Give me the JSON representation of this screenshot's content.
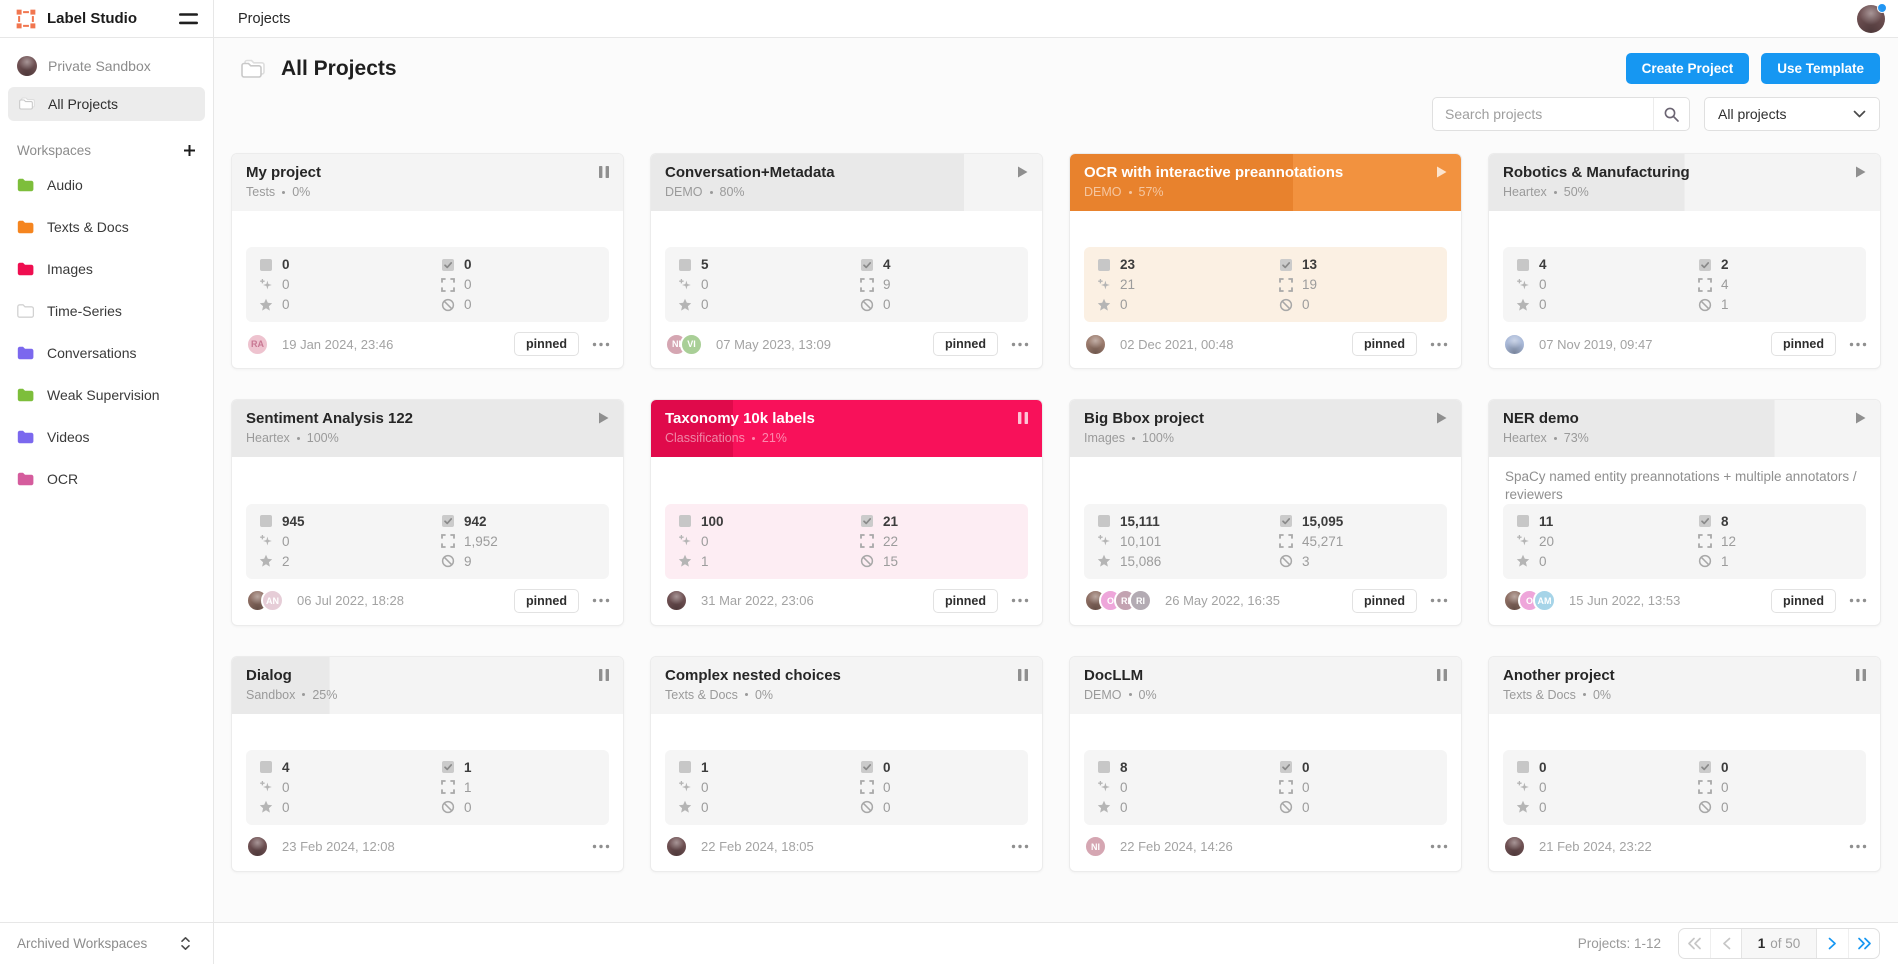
{
  "topbar": {
    "brand": "Label Studio",
    "page_title": "Projects"
  },
  "icons": {
    "logo": "label-studio-logo",
    "menu": "hamburger",
    "search": "magnifier",
    "filter_caret": "chevron-down",
    "add_workspace": "plus",
    "archived_sort": "up-down-chevrons",
    "all_projects": "folder-stack",
    "header_title": "folder-stack",
    "workspace_item": "folder",
    "card_menu": "ellipsis",
    "page_first": "double-chevron-left",
    "page_prev": "chevron-left",
    "page_next": "chevron-right",
    "page_last": "double-chevron-right"
  },
  "colors": {
    "accent_blue": "#1697f2",
    "logo_orange": "#f1764f",
    "pager_active_blue": "#2f9ff3",
    "user_badge_blue": "#2196f3",
    "card_themes": {
      "gray": {
        "fill": "#e9e9e9",
        "base": "#f4f4f4",
        "title": "#262626",
        "subtitle": "#9a9a9a",
        "stats_bg": "#f5f5f5",
        "state": "#8f8f8f"
      },
      "orange": {
        "fill": "#e8822d",
        "base": "#f2923f",
        "title": "#ffffff",
        "subtitle": "rgba(255,255,255,0.55)",
        "stats_bg": "#fbf0e3",
        "state": "rgba(255,255,255,0.75)"
      },
      "red": {
        "fill": "#e00a4b",
        "base": "#f8115a",
        "title": "#ffffff",
        "subtitle": "rgba(255,255,255,0.5)",
        "stats_bg": "#fdedf3",
        "state": "rgba(255,255,255,0.75)"
      }
    }
  },
  "sidebar": {
    "private_sandbox_label": "Private Sandbox",
    "private_avatar_color": "#6e5052",
    "all_projects_label": "All Projects",
    "workspaces_label": "Workspaces",
    "archived_label": "Archived Workspaces",
    "workspaces": [
      {
        "label": "Audio",
        "color": "#7dbe3b",
        "outline": false
      },
      {
        "label": "Texts & Docs",
        "color": "#f5851f",
        "outline": false
      },
      {
        "label": "Images",
        "color": "#ef0e50",
        "outline": false
      },
      {
        "label": "Time-Series",
        "color": "#ffffff",
        "outline": true
      },
      {
        "label": "Conversations",
        "color": "#7b68ee",
        "outline": false
      },
      {
        "label": "Weak Supervision",
        "color": "#7dbe3b",
        "outline": false
      },
      {
        "label": "Videos",
        "color": "#7b68ee",
        "outline": false
      },
      {
        "label": "OCR",
        "color": "#d55c9d",
        "outline": false
      }
    ]
  },
  "header": {
    "title": "All Projects",
    "create_button": "Create Project",
    "use_template_button": "Use Template",
    "search_placeholder": "Search projects",
    "search_value": "",
    "filter_value": "All projects"
  },
  "labels": {
    "pinned": "pinned"
  },
  "stat_rows": [
    {
      "key": "tasks",
      "icon": "task-square"
    },
    {
      "key": "completed",
      "icon": "check-square"
    },
    {
      "key": "predictions",
      "icon": "sparkles"
    },
    {
      "key": "annotations",
      "icon": "bbox-corners"
    },
    {
      "key": "ground_truth",
      "icon": "star"
    },
    {
      "key": "skipped",
      "icon": "ban"
    }
  ],
  "user": {
    "avatar_color": "#6e5052"
  },
  "cards": [
    {
      "title": "My project",
      "workspace": "Tests",
      "percent": "0%",
      "progress": 0,
      "theme": "gray",
      "state": "pause",
      "description": "",
      "stats": {
        "tasks": "0",
        "completed": "0",
        "predictions": "0",
        "annotations": "0",
        "ground_truth": "0",
        "skipped": "0"
      },
      "avatars": [
        {
          "text": "RA",
          "bg": "#eec3cf",
          "fg": "#c87893",
          "photo": false
        }
      ],
      "date": "19 Jan 2024, 23:46",
      "pinned": true
    },
    {
      "title": "Conversation+Metadata",
      "workspace": "DEMO",
      "percent": "80%",
      "progress": 80,
      "theme": "gray",
      "state": "play",
      "description": "",
      "stats": {
        "tasks": "5",
        "completed": "4",
        "predictions": "0",
        "annotations": "9",
        "ground_truth": "0",
        "skipped": "0"
      },
      "avatars": [
        {
          "text": "NI",
          "bg": "#d5a6b2",
          "fg": "#ffffff",
          "photo": false
        },
        {
          "text": "VI",
          "bg": "#a9cf97",
          "fg": "#ffffff",
          "photo": false
        }
      ],
      "date": "07 May 2023, 13:09",
      "pinned": true
    },
    {
      "title": "OCR with interactive preannotations",
      "workspace": "DEMO",
      "percent": "57%",
      "progress": 57,
      "theme": "orange",
      "state": "play",
      "description": "",
      "stats": {
        "tasks": "23",
        "completed": "13",
        "predictions": "21",
        "annotations": "19",
        "ground_truth": "0",
        "skipped": "0"
      },
      "avatars": [
        {
          "text": "",
          "bg": "#9b7b6d",
          "fg": "#ffffff",
          "photo": true
        }
      ],
      "date": "02 Dec 2021, 00:48",
      "pinned": true
    },
    {
      "title": "Robotics & Manufacturing",
      "workspace": "Heartex",
      "percent": "50%",
      "progress": 50,
      "theme": "gray",
      "state": "play",
      "description": "",
      "stats": {
        "tasks": "4",
        "completed": "2",
        "predictions": "0",
        "annotations": "4",
        "ground_truth": "0",
        "skipped": "1"
      },
      "avatars": [
        {
          "text": "",
          "bg": "#a9b9d8",
          "fg": "#ffffff",
          "photo": true
        }
      ],
      "date": "07 Nov 2019, 09:47",
      "pinned": true
    },
    {
      "title": "Sentiment Analysis 122",
      "workspace": "Heartex",
      "percent": "100%",
      "progress": 100,
      "theme": "gray",
      "state": "play",
      "description": "",
      "stats": {
        "tasks": "945",
        "completed": "942",
        "predictions": "0",
        "annotations": "1,952",
        "ground_truth": "2",
        "skipped": "9"
      },
      "avatars": [
        {
          "text": "",
          "bg": "#8d6e63",
          "fg": "#ffffff",
          "photo": true
        },
        {
          "text": "AN",
          "bg": "#e6cdd7",
          "fg": "#ffffff",
          "photo": false
        }
      ],
      "date": "06 Jul 2022, 18:28",
      "pinned": true
    },
    {
      "title": "Taxonomy 10k labels",
      "workspace": "Classifications",
      "percent": "21%",
      "progress": 21,
      "theme": "red",
      "state": "pause",
      "description": "",
      "stats": {
        "tasks": "100",
        "completed": "21",
        "predictions": "0",
        "annotations": "22",
        "ground_truth": "1",
        "skipped": "15"
      },
      "avatars": [
        {
          "text": "",
          "bg": "#6e5052",
          "fg": "#ffffff",
          "photo": true
        }
      ],
      "date": "31 Mar 2022, 23:06",
      "pinned": true
    },
    {
      "title": "Big Bbox project",
      "workspace": "Images",
      "percent": "100%",
      "progress": 100,
      "theme": "gray",
      "state": "play",
      "description": "",
      "stats": {
        "tasks": "15,111",
        "completed": "15,095",
        "predictions": "10,101",
        "annotations": "45,271",
        "ground_truth": "15,086",
        "skipped": "3"
      },
      "avatars": [
        {
          "text": "",
          "bg": "#8d6e63",
          "fg": "#ffffff",
          "photo": true
        },
        {
          "text": "O",
          "bg": "#eea6da",
          "fg": "#ffffff",
          "photo": false
        },
        {
          "text": "RI",
          "bg": "#c3a3b1",
          "fg": "#ffffff",
          "photo": false
        },
        {
          "text": "RI",
          "bg": "#b3abb3",
          "fg": "#ffffff",
          "photo": false
        }
      ],
      "date": "26 May 2022, 16:35",
      "pinned": true
    },
    {
      "title": "NER demo",
      "workspace": "Heartex",
      "percent": "73%",
      "progress": 73,
      "theme": "gray",
      "state": "play",
      "description": "SpaCy named entity preannotations + multiple annotators / reviewers",
      "stats": {
        "tasks": "11",
        "completed": "8",
        "predictions": "20",
        "annotations": "12",
        "ground_truth": "0",
        "skipped": "1"
      },
      "avatars": [
        {
          "text": "",
          "bg": "#8d6e63",
          "fg": "#ffffff",
          "photo": true
        },
        {
          "text": "O",
          "bg": "#eea6da",
          "fg": "#ffffff",
          "photo": false
        },
        {
          "text": "AM",
          "bg": "#a6d4e8",
          "fg": "#ffffff",
          "photo": false
        }
      ],
      "date": "15 Jun 2022, 13:53",
      "pinned": true
    },
    {
      "title": "Dialog",
      "workspace": "Sandbox",
      "percent": "25%",
      "progress": 25,
      "theme": "gray",
      "state": "pause",
      "description": "",
      "stats": {
        "tasks": "4",
        "completed": "1",
        "predictions": "0",
        "annotations": "1",
        "ground_truth": "0",
        "skipped": "0"
      },
      "avatars": [
        {
          "text": "",
          "bg": "#6e5052",
          "fg": "#ffffff",
          "photo": true
        }
      ],
      "date": "23 Feb 2024, 12:08",
      "pinned": false
    },
    {
      "title": "Complex nested choices",
      "workspace": "Texts & Docs",
      "percent": "0%",
      "progress": 0,
      "theme": "gray",
      "state": "pause",
      "description": "",
      "stats": {
        "tasks": "1",
        "completed": "0",
        "predictions": "0",
        "annotations": "0",
        "ground_truth": "0",
        "skipped": "0"
      },
      "avatars": [
        {
          "text": "",
          "bg": "#6e5052",
          "fg": "#ffffff",
          "photo": true
        }
      ],
      "date": "22 Feb 2024, 18:05",
      "pinned": false
    },
    {
      "title": "DocLLM",
      "workspace": "DEMO",
      "percent": "0%",
      "progress": 0,
      "theme": "gray",
      "state": "pause",
      "description": "",
      "stats": {
        "tasks": "8",
        "completed": "0",
        "predictions": "0",
        "annotations": "0",
        "ground_truth": "0",
        "skipped": "0"
      },
      "avatars": [
        {
          "text": "NI",
          "bg": "#d5a6b2",
          "fg": "#ffffff",
          "photo": false
        }
      ],
      "date": "22 Feb 2024, 14:26",
      "pinned": false
    },
    {
      "title": "Another project",
      "workspace": "Texts & Docs",
      "percent": "0%",
      "progress": 0,
      "theme": "gray",
      "state": "pause",
      "description": "",
      "stats": {
        "tasks": "0",
        "completed": "0",
        "predictions": "0",
        "annotations": "0",
        "ground_truth": "0",
        "skipped": "0"
      },
      "avatars": [
        {
          "text": "",
          "bg": "#6e5052",
          "fg": "#ffffff",
          "photo": true
        }
      ],
      "date": "21 Feb 2024, 23:22",
      "pinned": false
    }
  ],
  "pagination": {
    "summary": "Projects: 1-12",
    "current_page": "1",
    "of_label": "of 50"
  }
}
